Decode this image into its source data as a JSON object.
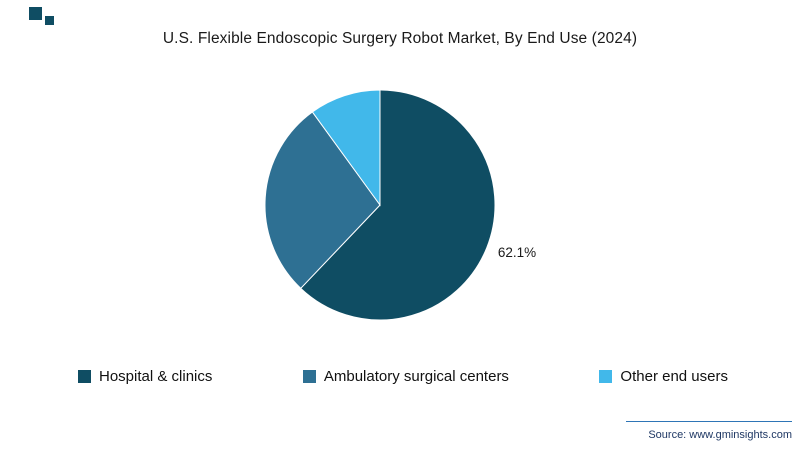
{
  "page": {
    "source": "Source: www.gminsights.com"
  },
  "brand": {
    "logo_colors": [
      "#0f4d63",
      "#0f4d63"
    ],
    "divider_color": "#2e75b6"
  },
  "chart_data": {
    "type": "pie",
    "title": "U.S. Flexible Endoscopic Surgery Robot Market, By End Use (2024)",
    "labels": [
      "Hospital & clinics",
      "Ambulatory surgical centers",
      "Other end users"
    ],
    "values": [
      62.1,
      27.9,
      10.0
    ],
    "colors": [
      "#0f4d63",
      "#2e7093",
      "#41b8ea"
    ],
    "data_labels": [
      "62.1%",
      "",
      ""
    ],
    "legend_position": "bottom",
    "start_angle": -90,
    "direction": "clockwise"
  }
}
